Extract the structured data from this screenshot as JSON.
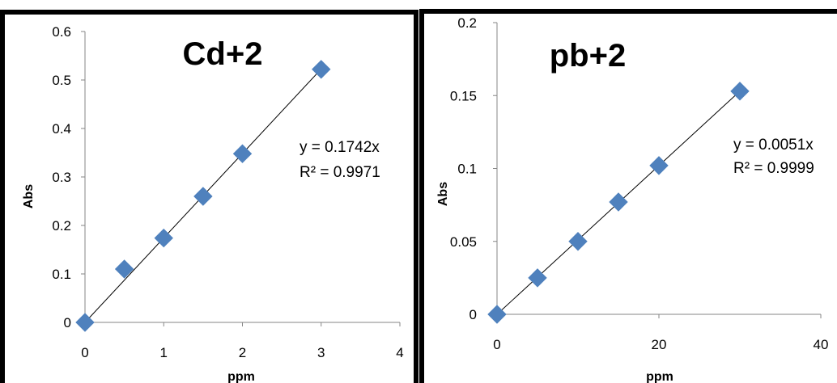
{
  "chart_data": [
    {
      "type": "scatter",
      "title": "Cd+2",
      "xlabel": "ppm",
      "ylabel": "Abs",
      "xlim": [
        0,
        4
      ],
      "ylim": [
        0,
        0.6
      ],
      "xticks": [
        "0",
        "1",
        "2",
        "3",
        "4"
      ],
      "yticks": [
        "0",
        "0.1",
        "0.2",
        "0.3",
        "0.4",
        "0.5",
        "0.6"
      ],
      "grid": false,
      "marker_color": "#4F81BD",
      "series": [
        {
          "x": [
            0,
            0.5,
            1,
            1.5,
            2,
            3
          ],
          "y": [
            0,
            0.11,
            0.174,
            0.26,
            0.348,
            0.522
          ]
        }
      ],
      "trendline": {
        "slope": 0.1742,
        "x_range": [
          0,
          3
        ]
      },
      "annotations": [
        "y = 0.1742x",
        "R² = 0.9971"
      ]
    },
    {
      "type": "scatter",
      "title": "pb+2",
      "xlabel": "ppm",
      "ylabel": "Abs",
      "xlim": [
        0,
        40
      ],
      "ylim": [
        0,
        0.2
      ],
      "xticks": [
        "0",
        "20",
        "40"
      ],
      "yticks": [
        "0",
        "0.05",
        "0.1",
        "0.15",
        "0.2"
      ],
      "grid": false,
      "marker_color": "#4F81BD",
      "series": [
        {
          "x": [
            0,
            5,
            10,
            15,
            20,
            30
          ],
          "y": [
            0,
            0.025,
            0.05,
            0.077,
            0.102,
            0.153
          ]
        }
      ],
      "trendline": {
        "slope": 0.0051,
        "x_range": [
          0,
          30
        ]
      },
      "annotations": [
        "y = 0.0051x",
        "R² = 0.9999"
      ]
    }
  ]
}
